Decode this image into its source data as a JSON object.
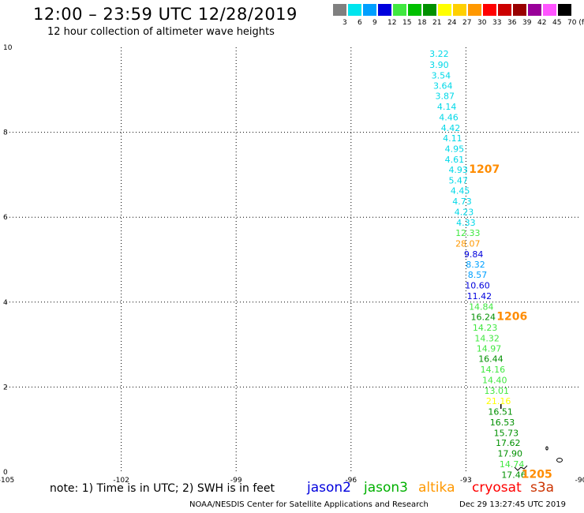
{
  "header": {
    "title": "12:00 – 23:59 UTC 12/28/2019",
    "subtitle": "12 hour collection of altimeter wave heights"
  },
  "color_scale": {
    "labels": [
      "3",
      "6",
      "9",
      "12",
      "15",
      "18",
      "21",
      "24",
      "27",
      "30",
      "33",
      "36",
      "39",
      "42",
      "45",
      "70 (ft)"
    ],
    "colors": [
      "#808080",
      "#00e5ee",
      "#00a0ff",
      "#0000dd",
      "#40e840",
      "#00c000",
      "#009000",
      "#ffff00",
      "#ffd000",
      "#ff9800",
      "#ff0000",
      "#cc0000",
      "#990000",
      "#990099",
      "#ff55ff",
      "#000000"
    ]
  },
  "map": {
    "x_ticks": [
      "-105",
      "-102",
      "-99",
      "-96",
      "-93",
      "-90"
    ],
    "x_values": [
      -105,
      -102,
      -99,
      -96,
      -93,
      -90
    ],
    "y_ticks": [
      "0",
      "2",
      "4",
      "6",
      "8",
      "10"
    ],
    "y_values": [
      0,
      2,
      4,
      6,
      8,
      10
    ],
    "xlim": [
      -105,
      -90
    ],
    "ylim": [
      0,
      10
    ],
    "grid": "dotted"
  },
  "observations": [
    {
      "text": "3.22",
      "lon": -93.7,
      "lat": 9.78,
      "color": "#00d8e8"
    },
    {
      "text": "3.90",
      "lon": -93.7,
      "lat": 9.52,
      "color": "#00d8e8"
    },
    {
      "text": "3.54",
      "lon": -93.65,
      "lat": 9.27,
      "color": "#00d8e8"
    },
    {
      "text": "3.64",
      "lon": -93.6,
      "lat": 9.02,
      "color": "#00d8e8"
    },
    {
      "text": "3.87",
      "lon": -93.55,
      "lat": 8.78,
      "color": "#00d8e8"
    },
    {
      "text": "4.14",
      "lon": -93.5,
      "lat": 8.53,
      "color": "#00d8e8"
    },
    {
      "text": "4.46",
      "lon": -93.45,
      "lat": 8.28,
      "color": "#00d8e8"
    },
    {
      "text": "4.42",
      "lon": -93.4,
      "lat": 8.03,
      "color": "#00d8e8"
    },
    {
      "text": "4.11",
      "lon": -93.35,
      "lat": 7.79,
      "color": "#00d8e8"
    },
    {
      "text": "4.95",
      "lon": -93.3,
      "lat": 7.54,
      "color": "#00d8e8"
    },
    {
      "text": "4.61",
      "lon": -93.3,
      "lat": 7.29,
      "color": "#00d8e8"
    },
    {
      "text": "4.93",
      "lon": -93.2,
      "lat": 7.04,
      "color": "#00d8e8"
    },
    {
      "text": "5.47",
      "lon": -93.2,
      "lat": 6.79,
      "color": "#00d8e8"
    },
    {
      "text": "4.45",
      "lon": -93.15,
      "lat": 6.55,
      "color": "#00d8e8"
    },
    {
      "text": "4.73",
      "lon": -93.1,
      "lat": 6.3,
      "color": "#00d8e8"
    },
    {
      "text": "4.23",
      "lon": -93.05,
      "lat": 6.05,
      "color": "#00d8e8"
    },
    {
      "text": "4.33",
      "lon": -93.0,
      "lat": 5.8,
      "color": "#00d8e8"
    },
    {
      "text": "12.33",
      "lon": -92.95,
      "lat": 5.56,
      "color": "#40e840"
    },
    {
      "text": "28.07",
      "lon": -92.95,
      "lat": 5.31,
      "color": "#ff9800"
    },
    {
      "text": "9.84",
      "lon": -92.8,
      "lat": 5.06,
      "color": "#0000dd"
    },
    {
      "text": "8.32",
      "lon": -92.75,
      "lat": 4.81,
      "color": "#00a0ff"
    },
    {
      "text": "8.57",
      "lon": -92.7,
      "lat": 4.57,
      "color": "#00a0ff"
    },
    {
      "text": "10.60",
      "lon": -92.7,
      "lat": 4.32,
      "color": "#0000dd"
    },
    {
      "text": "11.42",
      "lon": -92.65,
      "lat": 4.07,
      "color": "#0000dd"
    },
    {
      "text": "14.84",
      "lon": -92.6,
      "lat": 3.82,
      "color": "#40e840"
    },
    {
      "text": "16.24",
      "lon": -92.55,
      "lat": 3.58,
      "color": "#009000"
    },
    {
      "text": "14.23",
      "lon": -92.5,
      "lat": 3.33,
      "color": "#40e840"
    },
    {
      "text": "14.32",
      "lon": -92.45,
      "lat": 3.08,
      "color": "#40e840"
    },
    {
      "text": "14.97",
      "lon": -92.4,
      "lat": 2.83,
      "color": "#40e840"
    },
    {
      "text": "16.44",
      "lon": -92.35,
      "lat": 2.59,
      "color": "#009000"
    },
    {
      "text": "14.16",
      "lon": -92.3,
      "lat": 2.34,
      "color": "#40e840"
    },
    {
      "text": "14.40",
      "lon": -92.25,
      "lat": 2.09,
      "color": "#40e840"
    },
    {
      "text": "13.01",
      "lon": -92.2,
      "lat": 1.84,
      "color": "#40e840"
    },
    {
      "text": "21.16",
      "lon": -92.15,
      "lat": 1.6,
      "color": "#ffff00"
    },
    {
      "text": "16.51",
      "lon": -92.1,
      "lat": 1.35,
      "color": "#009000"
    },
    {
      "text": "16.53",
      "lon": -92.05,
      "lat": 1.1,
      "color": "#009000"
    },
    {
      "text": "15.73",
      "lon": -91.95,
      "lat": 0.85,
      "color": "#009000"
    },
    {
      "text": "17.62",
      "lon": -91.9,
      "lat": 0.61,
      "color": "#009000"
    },
    {
      "text": "17.90",
      "lon": -91.85,
      "lat": 0.36,
      "color": "#009000"
    },
    {
      "text": "14.74",
      "lon": -91.8,
      "lat": 0.11,
      "color": "#40e840"
    },
    {
      "text": "17.46",
      "lon": -91.75,
      "lat": -0.14,
      "color": "#009000"
    }
  ],
  "time_labels": [
    {
      "text": "1207",
      "lon": -92.92,
      "lat": 7.04
    },
    {
      "text": "1206",
      "lon": -92.2,
      "lat": 3.58
    },
    {
      "text": "1205",
      "lon": -91.55,
      "lat": -0.14
    }
  ],
  "footer": {
    "note": "note:  1) Time is in UTC;  2) SWH is in feet",
    "satellites": [
      {
        "name": "jason2",
        "color": "#0000dd"
      },
      {
        "name": "jason3",
        "color": "#00b000"
      },
      {
        "name": "altika",
        "color": "#ff9800"
      },
      {
        "name": "cryosat",
        "color": "#ff0000"
      },
      {
        "name": "s3a",
        "color": "#cc3300"
      }
    ],
    "credit": "NOAA/NESDIS Center for Satellite Applications and Research",
    "timestamp": "Dec 29 13:27:45 UTC 2019"
  }
}
